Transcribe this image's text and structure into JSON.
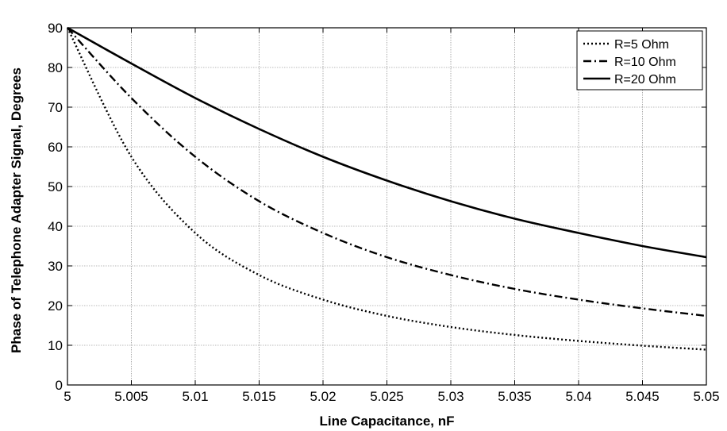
{
  "chart_data": {
    "type": "line",
    "title": "",
    "xlabel": "Line Capacitance, nF",
    "ylabel": "Phase of Telephone Adapter Signal, Degrees",
    "xlim": [
      5,
      5.05
    ],
    "ylim": [
      0,
      90
    ],
    "x_ticks": [
      "5",
      "5.005",
      "5.01",
      "5.015",
      "5.02",
      "5.025",
      "5.03",
      "5.035",
      "5.04",
      "5.045",
      "5.05"
    ],
    "y_ticks": [
      "0",
      "10",
      "20",
      "30",
      "40",
      "50",
      "60",
      "70",
      "80",
      "90"
    ],
    "grid": true,
    "legend_position": "top-right",
    "x": [
      5,
      5.005,
      5.01,
      5.015,
      5.02,
      5.025,
      5.03,
      5.035,
      5.04,
      5.045,
      5.05
    ],
    "series": [
      {
        "name": "R=5 Ohm",
        "style": "dotted",
        "values": [
          90,
          57.5,
          38.3,
          27.7,
          21.5,
          17.4,
          14.6,
          12.6,
          11.1,
          9.9,
          8.9
        ]
      },
      {
        "name": "R=10 Ohm",
        "style": "dash-dot",
        "values": [
          90,
          72.3,
          57.5,
          46.3,
          38.3,
          32.2,
          27.7,
          24.2,
          21.5,
          19.3,
          17.4
        ]
      },
      {
        "name": "R=20 Ohm",
        "style": "solid",
        "values": [
          90,
          81.0,
          72.3,
          64.5,
          57.5,
          51.5,
          46.3,
          41.9,
          38.3,
          35.0,
          32.2
        ]
      }
    ]
  }
}
